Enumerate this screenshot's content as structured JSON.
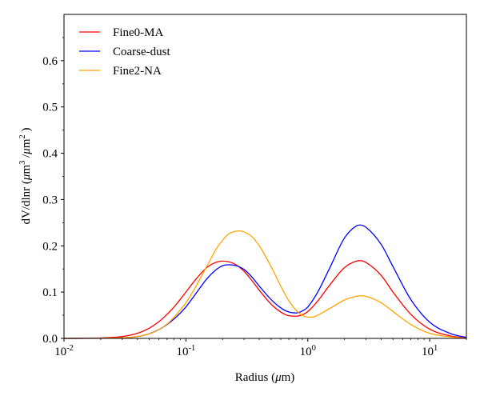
{
  "chart_data": {
    "type": "line",
    "xlabel": "Radius (μm)",
    "ylabel": "dV/dlnr (μm³ /μm² )",
    "xscale": "log",
    "xlim": [
      0.01,
      20
    ],
    "ylim": [
      0,
      0.7
    ],
    "yticks": [
      0.0,
      0.1,
      0.2,
      0.3,
      0.4,
      0.5,
      0.6
    ],
    "ytick_labels": [
      "0.0",
      "0.1",
      "0.2",
      "0.3",
      "0.4",
      "0.5",
      "0.6"
    ],
    "xticks": [
      0.01,
      0.1,
      1,
      10
    ],
    "xtick_labels": [
      {
        "base": "10",
        "exp": "-2"
      },
      {
        "base": "10",
        "exp": "-1"
      },
      {
        "base": "10",
        "exp": "0"
      },
      {
        "base": "10",
        "exp": "1"
      }
    ],
    "grid": false,
    "legend_position": "top-left",
    "series": [
      {
        "name": "Fine0-MA",
        "color": "#ff0000",
        "x": [
          0.01,
          0.02,
          0.03,
          0.04,
          0.05,
          0.06,
          0.07,
          0.08,
          0.1,
          0.12,
          0.15,
          0.18,
          0.2,
          0.22,
          0.25,
          0.3,
          0.35,
          0.4,
          0.5,
          0.6,
          0.7,
          0.8,
          0.9,
          1.0,
          1.2,
          1.5,
          2.0,
          2.5,
          2.7,
          3.0,
          4.0,
          5.0,
          7.0,
          10.0,
          15.0,
          20.0
        ],
        "y": [
          0.0,
          0.001,
          0.004,
          0.011,
          0.022,
          0.036,
          0.052,
          0.068,
          0.1,
          0.127,
          0.154,
          0.165,
          0.167,
          0.166,
          0.161,
          0.145,
          0.124,
          0.104,
          0.074,
          0.057,
          0.049,
          0.048,
          0.051,
          0.058,
          0.08,
          0.114,
          0.153,
          0.167,
          0.168,
          0.164,
          0.136,
          0.1,
          0.052,
          0.02,
          0.005,
          0.001
        ]
      },
      {
        "name": "Coarse-dust",
        "color": "#0000ff",
        "x": [
          0.01,
          0.03,
          0.04,
          0.05,
          0.06,
          0.07,
          0.08,
          0.1,
          0.12,
          0.15,
          0.18,
          0.2,
          0.22,
          0.25,
          0.3,
          0.35,
          0.4,
          0.5,
          0.6,
          0.7,
          0.8,
          0.9,
          1.0,
          1.2,
          1.5,
          2.0,
          2.5,
          2.7,
          3.0,
          4.0,
          5.0,
          7.0,
          10.0,
          15.0,
          20.0
        ],
        "y": [
          0.0,
          0.001,
          0.004,
          0.01,
          0.019,
          0.03,
          0.042,
          0.068,
          0.096,
          0.13,
          0.15,
          0.157,
          0.159,
          0.158,
          0.149,
          0.132,
          0.113,
          0.084,
          0.066,
          0.057,
          0.055,
          0.059,
          0.068,
          0.099,
          0.15,
          0.217,
          0.243,
          0.245,
          0.24,
          0.203,
          0.155,
          0.084,
          0.035,
          0.01,
          0.002
        ]
      },
      {
        "name": "Fine2-NA",
        "color": "#ffa500",
        "x": [
          0.01,
          0.03,
          0.04,
          0.05,
          0.06,
          0.07,
          0.08,
          0.1,
          0.12,
          0.15,
          0.18,
          0.2,
          0.22,
          0.25,
          0.28,
          0.3,
          0.35,
          0.4,
          0.5,
          0.6,
          0.7,
          0.8,
          0.9,
          1.0,
          1.1,
          1.2,
          1.5,
          2.0,
          2.5,
          2.8,
          3.0,
          4.0,
          5.0,
          7.0,
          10.0,
          15.0,
          20.0
        ],
        "y": [
          0.0,
          0.001,
          0.004,
          0.01,
          0.019,
          0.031,
          0.046,
          0.077,
          0.111,
          0.158,
          0.196,
          0.212,
          0.224,
          0.231,
          0.232,
          0.23,
          0.219,
          0.2,
          0.155,
          0.113,
          0.081,
          0.061,
          0.05,
          0.046,
          0.046,
          0.05,
          0.064,
          0.083,
          0.091,
          0.092,
          0.091,
          0.077,
          0.058,
          0.03,
          0.011,
          0.003,
          0.0
        ]
      }
    ]
  }
}
